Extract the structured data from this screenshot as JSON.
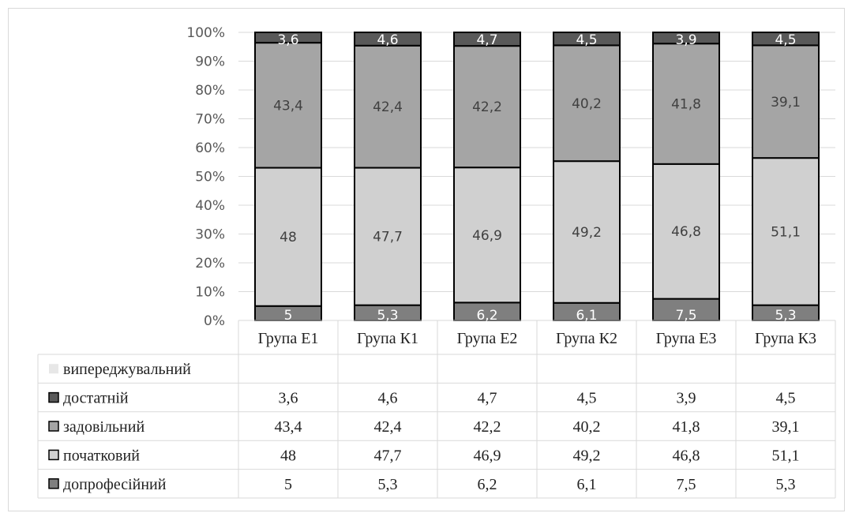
{
  "chart_data": {
    "type": "bar",
    "stacked": true,
    "percent": true,
    "categories": [
      "Група Е1",
      "Група К1",
      "Група Е2",
      "Група К2",
      "Група Е3",
      "Група К3"
    ],
    "y_ticks": [
      "0%",
      "10%",
      "20%",
      "30%",
      "40%",
      "50%",
      "60%",
      "70%",
      "80%",
      "90%",
      "100%"
    ],
    "ylim": [
      0,
      100
    ],
    "grid": true,
    "legend": "data-table-left",
    "series_bottom_to_top": [
      {
        "name": "допрофесійний",
        "color": "#7f7f7f",
        "label_color": "#ffffff",
        "values": [
          5,
          5.3,
          6.2,
          6.1,
          7.5,
          5.3
        ],
        "labels": [
          "5",
          "5,3",
          "6,2",
          "6,1",
          "7,5",
          "5,3"
        ]
      },
      {
        "name": "початковий",
        "color": "#d0d0d0",
        "label_color": "#404040",
        "values": [
          48,
          47.7,
          46.9,
          49.2,
          46.8,
          51.1
        ],
        "labels": [
          "48",
          "47,7",
          "46,9",
          "49,2",
          "46,8",
          "51,1"
        ]
      },
      {
        "name": "задовільний",
        "color": "#a5a5a5",
        "label_color": "#404040",
        "values": [
          43.4,
          42.4,
          42.2,
          40.2,
          41.8,
          39.1
        ],
        "labels": [
          "43,4",
          "42,4",
          "42,2",
          "40,2",
          "41,8",
          "39,1"
        ]
      },
      {
        "name": "достатній",
        "color": "#595959",
        "label_color": "#ffffff",
        "values": [
          3.6,
          4.6,
          4.7,
          4.5,
          3.9,
          4.5
        ],
        "labels": [
          "3,6",
          "4,6",
          "4,7",
          "4,5",
          "3,9",
          "4,5"
        ]
      },
      {
        "name": "випереджувальний",
        "color": "#e7e7e7",
        "label_color": "#404040",
        "values": [
          null,
          null,
          null,
          null,
          null,
          null
        ],
        "labels": [
          "",
          "",
          "",
          "",
          "",
          ""
        ]
      }
    ]
  }
}
